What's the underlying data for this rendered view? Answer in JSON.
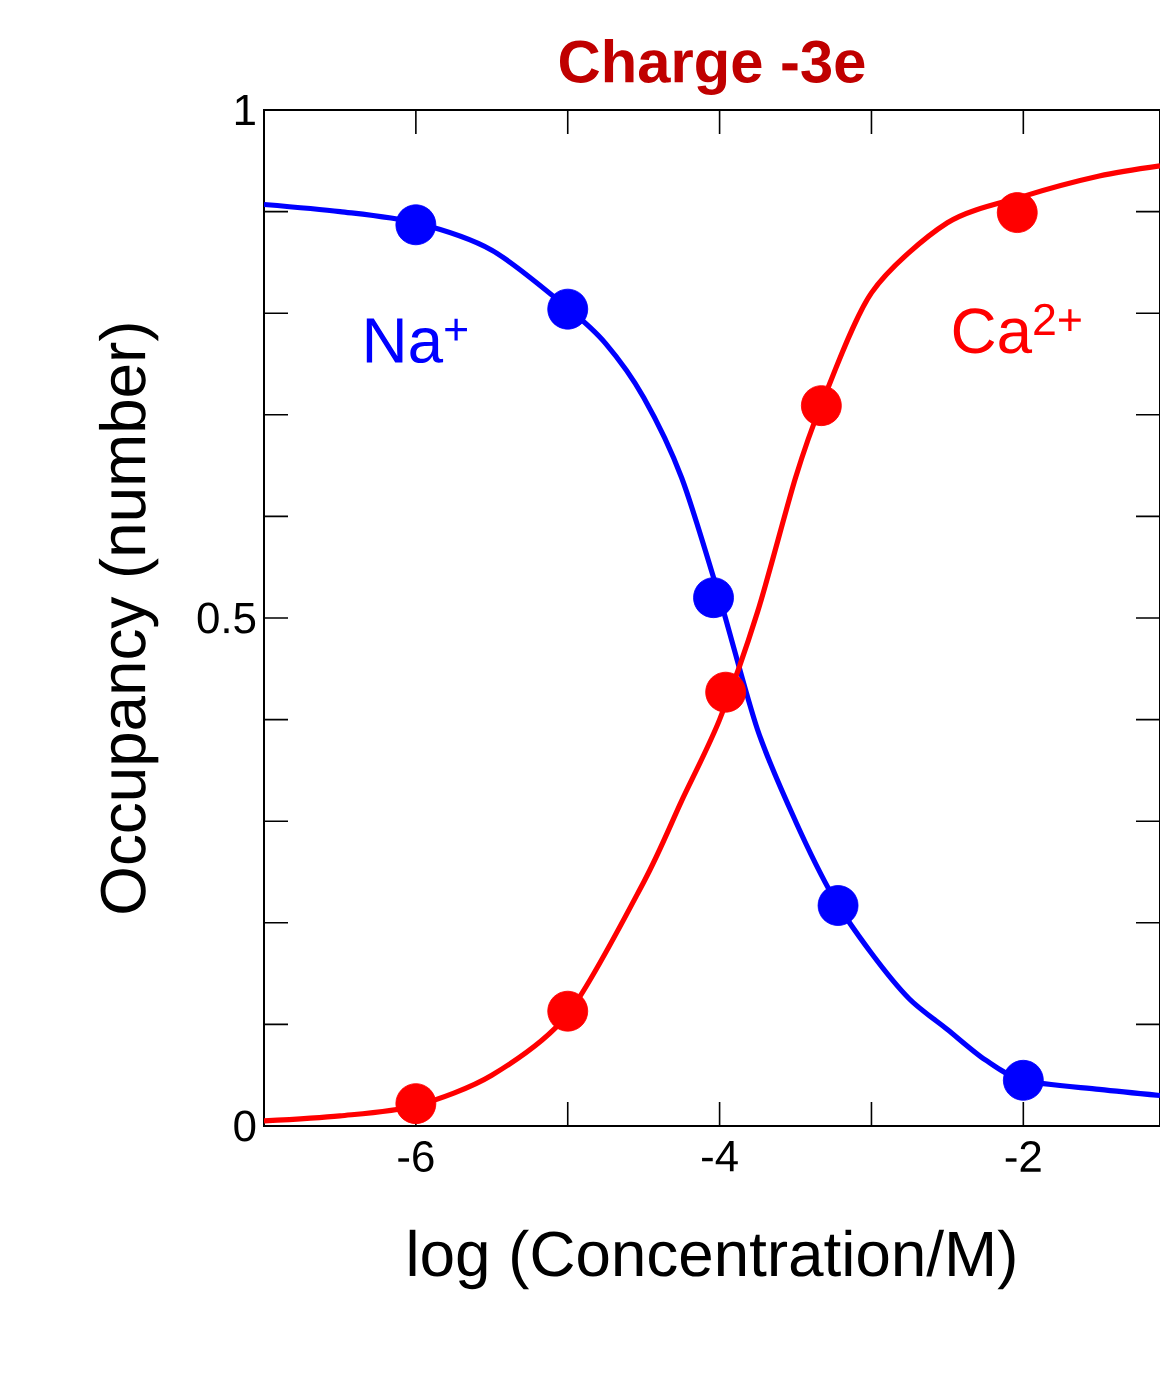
{
  "chart_data": {
    "type": "line",
    "title": "Charge  -3e",
    "xlabel": "log (Concentration/M)",
    "ylabel": "Occupancy (number)",
    "xlim": [
      -7,
      -1.1
    ],
    "ylim": [
      0,
      1
    ],
    "xticks": [
      {
        "value": -6,
        "label": "-6"
      },
      {
        "value": -5,
        "label": null
      },
      {
        "value": -4,
        "label": "-4"
      },
      {
        "value": -3,
        "label": null
      },
      {
        "value": -2,
        "label": "-2"
      }
    ],
    "yticks": [
      0,
      {
        "value": 0.1,
        "label": null
      },
      {
        "value": 0.2,
        "label": null
      },
      {
        "value": 0.3,
        "label": null
      },
      {
        "value": 0.4,
        "label": null
      },
      0.5,
      {
        "value": 0.6,
        "label": null
      },
      {
        "value": 0.7,
        "label": null
      },
      {
        "value": 0.8,
        "label": null
      },
      {
        "value": 0.9,
        "label": null
      },
      1
    ],
    "grid": false,
    "series": [
      {
        "name": "Na$^{+}$",
        "color": "#0000ff",
        "marker": "none",
        "x": [
          -7,
          -6.5,
          -6,
          -5.5,
          -5,
          -4.75,
          -4.5,
          -4.25,
          -4,
          -3.75,
          -3.5,
          -3.25,
          -3,
          -2.75,
          -2.5,
          -2.25,
          -2,
          -1.5,
          -1.1
        ],
        "values": [
          0.907,
          0.9,
          0.889,
          0.862,
          0.805,
          0.77,
          0.717,
          0.638,
          0.52,
          0.39,
          0.3,
          0.225,
          0.17,
          0.125,
          0.095,
          0.065,
          0.045,
          0.036,
          0.03
        ]
      },
      {
        "name": "Ca$^{2+}$",
        "color": "#ff0000",
        "marker": "none",
        "x": [
          -7,
          -6.5,
          -6,
          -5.5,
          -5,
          -4.5,
          -4.25,
          -4,
          -3.75,
          -3.5,
          -3.33,
          -3,
          -2.5,
          -2,
          -1.5,
          -1.1
        ],
        "values": [
          0.005,
          0.01,
          0.02,
          0.05,
          0.11,
          0.24,
          0.32,
          0.4,
          0.506,
          0.638,
          0.71,
          0.82,
          0.889,
          0.915,
          0.935,
          0.945
        ]
      },
      {
        "type": "scatter",
        "color": "#0000ff",
        "marker": "circle",
        "x": [
          -6,
          -5,
          -4.04,
          -3.22,
          -2
        ],
        "values": [
          0.887,
          0.804,
          0.52,
          0.217,
          0.045
        ]
      },
      {
        "type": "scatter",
        "color": "#ff0000",
        "marker": "circle",
        "x": [
          -6,
          -5,
          -3.96,
          -3.33,
          -2.04
        ],
        "values": [
          0.022,
          0.113,
          0.427,
          0.709,
          0.899
        ]
      }
    ]
  }
}
